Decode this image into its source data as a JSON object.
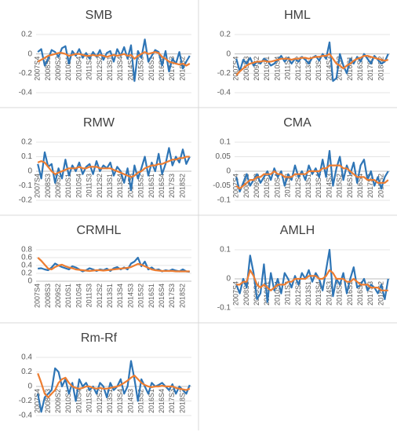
{
  "chart_data": [
    {
      "type": "line",
      "title": "SMB",
      "ylim": [
        -0.4,
        0.2
      ],
      "yticks": [
        -0.4,
        -0.2,
        0,
        0.2
      ],
      "categories": [
        "2007S4",
        null,
        null,
        "2008S3",
        null,
        null,
        "2009S2",
        null,
        null,
        "2010S1",
        null,
        null,
        "2010S4",
        null,
        null,
        "2011S3",
        null,
        null,
        "2012S2",
        null,
        null,
        "2013S1",
        null,
        null,
        "2013S4",
        null,
        null,
        "2014S3",
        null,
        null,
        "2015S2",
        null,
        null,
        "2016S1",
        null,
        null,
        "2016S4",
        null,
        null,
        "2017S3",
        null,
        null,
        "2018S2",
        null,
        null
      ],
      "series": [
        {
          "color": "#2e75b6",
          "values": [
            0.02,
            0.05,
            -0.12,
            -0.05,
            0.04,
            0.02,
            -0.03,
            0.06,
            0.08,
            -0.1,
            0.03,
            -0.02,
            0.05,
            -0.04,
            0.01,
            -0.05,
            0.02,
            -0.03,
            0.04,
            -0.06,
            0.01,
            0.03,
            -0.08,
            0.05,
            -0.02,
            0.07,
            -0.05,
            0.09,
            -0.28,
            0.03,
            -0.04,
            0.15,
            -0.08,
            -0.02,
            0.04,
            0.02,
            -0.12,
            0.03,
            -0.18,
            -0.05,
            -0.1,
            0.02,
            -0.15,
            -0.08,
            -0.02
          ]
        },
        {
          "color": "#ed7d31",
          "values": [
            -0.08,
            -0.06,
            -0.04,
            -0.02,
            -0.01,
            0,
            0.01,
            0.01,
            0,
            -0.02,
            -0.01,
            0,
            0,
            -0.01,
            -0.02,
            -0.02,
            -0.01,
            -0.02,
            -0.01,
            -0.02,
            -0.03,
            -0.02,
            -0.01,
            -0.02,
            -0.01,
            0,
            -0.02,
            -0.01,
            -0.05,
            -0.02,
            0,
            0.02,
            0,
            0.01,
            0.02,
            0.01,
            -0.03,
            -0.05,
            -0.08,
            -0.09,
            -0.1,
            -0.11,
            -0.1,
            -0.12,
            -0.1
          ]
        }
      ]
    },
    {
      "type": "line",
      "title": "HML",
      "ylim": [
        -0.4,
        0.2
      ],
      "yticks": [
        -0.4,
        -0.2,
        0,
        0.2
      ],
      "categories": [
        "2007S4",
        null,
        null,
        "2008S3",
        null,
        null,
        "2009S2",
        null,
        null,
        "2010S1",
        null,
        null,
        "2010S4",
        null,
        null,
        "2011S3",
        null,
        null,
        "2012S2",
        null,
        null,
        "2013S1",
        null,
        null,
        "2013S4",
        null,
        null,
        "2014S3",
        null,
        null,
        "2015S2",
        null,
        null,
        "2016S1",
        null,
        null,
        "2016S4",
        null,
        null,
        "2017S3",
        null,
        null,
        "2018S2",
        null,
        null
      ],
      "series": [
        {
          "color": "#2e75b6",
          "values": [
            -0.05,
            -0.18,
            -0.06,
            -0.1,
            -0.04,
            -0.12,
            -0.08,
            -0.1,
            -0.05,
            -0.07,
            -0.12,
            -0.1,
            -0.06,
            -0.02,
            -0.08,
            -0.04,
            -0.1,
            -0.05,
            -0.08,
            -0.03,
            -0.06,
            -0.1,
            -0.04,
            -0.02,
            -0.07,
            0,
            -0.05,
            0.12,
            -0.28,
            -0.25,
            0,
            -0.12,
            -0.2,
            -0.05,
            -0.1,
            -0.03,
            -0.08,
            0,
            -0.05,
            -0.1,
            -0.02,
            -0.06,
            -0.1,
            -0.08,
            0
          ]
        },
        {
          "color": "#ed7d31",
          "values": [
            -0.22,
            -0.18,
            -0.15,
            -0.12,
            -0.1,
            -0.09,
            -0.08,
            -0.08,
            -0.07,
            -0.08,
            -0.08,
            -0.07,
            -0.06,
            -0.05,
            -0.05,
            -0.05,
            -0.06,
            -0.05,
            -0.05,
            -0.04,
            -0.04,
            -0.05,
            -0.04,
            -0.03,
            -0.03,
            -0.02,
            -0.02,
            0,
            -0.05,
            -0.1,
            -0.12,
            -0.15,
            -0.12,
            -0.1,
            -0.07,
            -0.05,
            -0.04,
            -0.02,
            -0.02,
            -0.03,
            -0.04,
            -0.05,
            -0.06,
            -0.07,
            -0.06
          ]
        }
      ]
    },
    {
      "type": "line",
      "title": "RMW",
      "ylim": [
        -0.2,
        0.2
      ],
      "yticks": [
        -0.2,
        -0.1,
        0,
        0.1,
        0.2
      ],
      "categories": [
        "2007S4",
        null,
        null,
        "2008S3",
        null,
        null,
        "2009S2",
        null,
        null,
        "2010S1",
        null,
        null,
        "2010S4",
        null,
        null,
        "2011S3",
        null,
        null,
        "2012S2",
        null,
        null,
        "2013S1",
        null,
        null,
        "2013S4",
        null,
        null,
        "2014S3",
        null,
        null,
        "2015S2",
        null,
        null,
        "2016S1",
        null,
        null,
        "2016S4",
        null,
        null,
        "2017S3",
        null,
        null,
        "2018S2",
        null,
        null
      ],
      "series": [
        {
          "color": "#2e75b6",
          "values": [
            0.05,
            -0.05,
            0.13,
            0.03,
            0.05,
            -0.08,
            0.02,
            -0.05,
            0.08,
            -0.03,
            0.04,
            0,
            0.06,
            -0.02,
            0.03,
            0.05,
            -0.02,
            0.07,
            0,
            0.04,
            0.02,
            0.06,
            -0.03,
            0.03,
            0,
            -0.08,
            0.02,
            -0.13,
            0.04,
            -0.05,
            0.02,
            0.1,
            -0.03,
            0.06,
            0,
            0.12,
            -0.02,
            0.05,
            0.16,
            0.04,
            0.1,
            0.06,
            0.15,
            0.05,
            0.1
          ]
        },
        {
          "color": "#ed7d31",
          "values": [
            0.06,
            0.07,
            0.06,
            0.03,
            0,
            -0.02,
            -0.01,
            0,
            0.01,
            0.02,
            0.02,
            0.02,
            0.03,
            0.02,
            0.02,
            0.03,
            0.03,
            0.03,
            0.02,
            0.02,
            0.02,
            0.02,
            0.01,
            0,
            -0.01,
            -0.02,
            -0.03,
            -0.04,
            -0.03,
            -0.01,
            0,
            0.02,
            0.03,
            0.04,
            0.04,
            0.05,
            0.05,
            0.06,
            0.07,
            0.08,
            0.08,
            0.09,
            0.09,
            0.1,
            0.1
          ]
        }
      ]
    },
    {
      "type": "line",
      "title": "CMA",
      "ylim": [
        -0.1,
        0.1
      ],
      "yticks": [
        -0.1,
        -0.05,
        0,
        0.05,
        0.1
      ],
      "categories": [
        "2007S4",
        null,
        null,
        "2008S3",
        null,
        null,
        "2009S2",
        null,
        null,
        "2010S1",
        null,
        null,
        "2010S4",
        null,
        null,
        "2011S3",
        null,
        null,
        "2012S2",
        null,
        null,
        "2013S1",
        null,
        null,
        "2013S4",
        null,
        null,
        "2014S3",
        null,
        null,
        "2015S2",
        null,
        null,
        "2016S1",
        null,
        null,
        "2016S4",
        null,
        null,
        "2017S3",
        null,
        null,
        "2018S2",
        null,
        null
      ],
      "series": [
        {
          "color": "#2e75b6",
          "values": [
            -0.02,
            -0.07,
            -0.04,
            -0.01,
            -0.05,
            -0.03,
            -0.01,
            -0.04,
            -0.02,
            0,
            -0.03,
            0.01,
            -0.02,
            0,
            -0.05,
            -0.01,
            -0.03,
            0.02,
            -0.02,
            0,
            -0.03,
            0.02,
            -0.01,
            0.01,
            -0.02,
            0.04,
            -0.02,
            0.07,
            -0.05,
            0.01,
            0.05,
            -0.03,
            0.02,
            -0.01,
            0.03,
            -0.04,
            0.02,
            0.04,
            -0.03,
            0,
            -0.05,
            -0.02,
            -0.06,
            -0.02,
            0
          ]
        },
        {
          "color": "#ed7d31",
          "values": [
            -0.05,
            -0.06,
            -0.05,
            -0.04,
            -0.03,
            -0.03,
            -0.02,
            -0.02,
            -0.01,
            -0.01,
            -0.01,
            0,
            -0.01,
            -0.01,
            -0.02,
            -0.02,
            -0.02,
            -0.01,
            -0.01,
            -0.01,
            -0.01,
            0,
            0,
            0,
            0,
            0.01,
            0.01,
            0.02,
            0.02,
            0.02,
            0.02,
            0.01,
            0.01,
            0,
            -0.01,
            -0.02,
            -0.02,
            -0.02,
            -0.03,
            -0.03,
            -0.03,
            -0.04,
            -0.04,
            -0.04,
            -0.03
          ]
        }
      ]
    },
    {
      "type": "line",
      "title": "CRMHL",
      "ylim": [
        0,
        0.8
      ],
      "yticks": [
        0,
        0.2,
        0.4,
        0.6,
        0.8
      ],
      "categories": [
        "2007S4",
        null,
        null,
        "2008S3",
        null,
        null,
        "2009S2",
        null,
        null,
        "2010S1",
        null,
        null,
        "2010S4",
        null,
        null,
        "2011S3",
        null,
        null,
        "2012S2",
        null,
        null,
        "2013S1",
        null,
        null,
        "2013S4",
        null,
        null,
        "2014S3",
        null,
        null,
        "2015S2",
        null,
        null,
        "2016S1",
        null,
        null,
        "2016S4",
        null,
        null,
        "2017S3",
        null,
        null,
        "2018S2",
        null,
        null
      ],
      "series": [
        {
          "color": "#2e75b6",
          "values": [
            0.32,
            0.33,
            0.3,
            0.28,
            0.35,
            0.45,
            0.4,
            0.36,
            0.33,
            0.3,
            0.38,
            0.35,
            0.3,
            0.25,
            0.28,
            0.33,
            0.3,
            0.26,
            0.3,
            0.28,
            0.32,
            0.26,
            0.33,
            0.36,
            0.3,
            0.35,
            0.3,
            0.45,
            0.5,
            0.6,
            0.38,
            0.5,
            0.3,
            0.35,
            0.28,
            0.3,
            0.25,
            0.28,
            0.26,
            0.3,
            0.27,
            0.25,
            0.3,
            0.25,
            0.24
          ]
        },
        {
          "color": "#ed7d31",
          "values": [
            0.6,
            0.52,
            0.42,
            0.32,
            0.3,
            0.36,
            0.4,
            0.42,
            0.38,
            0.35,
            0.33,
            0.3,
            0.29,
            0.28,
            0.27,
            0.26,
            0.27,
            0.28,
            0.28,
            0.27,
            0.28,
            0.29,
            0.3,
            0.31,
            0.32,
            0.33,
            0.34,
            0.36,
            0.4,
            0.44,
            0.42,
            0.38,
            0.34,
            0.3,
            0.28,
            0.27,
            0.26,
            0.26,
            0.26,
            0.26,
            0.25,
            0.25,
            0.25,
            0.25,
            0.25
          ]
        }
      ]
    },
    {
      "type": "line",
      "title": "AMLH",
      "ylim": [
        -0.1,
        0.1
      ],
      "yticks": [
        -0.1,
        0,
        0.1
      ],
      "categories": [
        "2007S4",
        null,
        null,
        "2008S3",
        null,
        null,
        "2009S2",
        null,
        null,
        "2010S1",
        null,
        null,
        "2010S4",
        null,
        null,
        "2011S3",
        null,
        null,
        "2012S2",
        null,
        null,
        "2013S1",
        null,
        null,
        "2013S4",
        null,
        null,
        "2014S3",
        null,
        null,
        "2015S2",
        null,
        null,
        "2016S1",
        null,
        null,
        "2016S4",
        null,
        null,
        "2017S3",
        null,
        null,
        "2018S2",
        null,
        null
      ],
      "series": [
        {
          "color": "#2e75b6",
          "values": [
            -0.02,
            -0.05,
            0,
            -0.03,
            0.08,
            0.02,
            -0.07,
            -0.05,
            0.05,
            -0.08,
            0.02,
            -0.04,
            0,
            -0.05,
            0.02,
            0,
            -0.03,
            0.01,
            -0.02,
            0.02,
            0,
            0.03,
            -0.01,
            0.02,
            0,
            -0.04,
            0.03,
            0.1,
            -0.06,
            0,
            -0.02,
            0.02,
            -0.05,
            0,
            0.04,
            -0.03,
            -0.02,
            0,
            -0.04,
            -0.02,
            -0.03,
            -0.05,
            -0.02,
            -0.07,
            0
          ]
        },
        {
          "color": "#ed7d31",
          "values": [
            -0.02,
            -0.02,
            -0.01,
            -0.01,
            0.03,
            0.01,
            -0.02,
            -0.03,
            -0.02,
            -0.03,
            -0.04,
            -0.03,
            -0.02,
            -0.02,
            -0.02,
            -0.01,
            -0.01,
            0,
            0,
            0,
            0,
            0.01,
            0.01,
            0.01,
            0,
            0,
            0.01,
            0.03,
            0.02,
            0,
            0,
            0,
            -0.01,
            -0.01,
            0,
            -0.01,
            -0.02,
            -0.02,
            -0.02,
            -0.03,
            -0.03,
            -0.03,
            -0.04,
            -0.04,
            -0.04
          ]
        }
      ]
    },
    {
      "type": "line",
      "title": "Rm-Rf",
      "ylim": [
        -0.4,
        0.4
      ],
      "yticks": [
        -0.4,
        -0.2,
        0,
        0.2,
        0.4
      ],
      "categories": [
        "2007S4",
        null,
        null,
        "2008S3",
        null,
        null,
        "2009S2",
        null,
        null,
        "2010S1",
        null,
        null,
        "2010S4",
        null,
        null,
        "2011S3",
        null,
        null,
        "2012S2",
        null,
        null,
        "2013S1",
        null,
        null,
        "2013S4",
        null,
        null,
        "2014S3",
        null,
        null,
        "2015S2",
        null,
        null,
        "2016S1",
        null,
        null,
        "2016S4",
        null,
        null,
        "2017S3",
        null,
        null,
        "2018S2",
        null,
        null
      ],
      "series": [
        {
          "color": "#2e75b6",
          "values": [
            -0.1,
            -0.35,
            -0.15,
            -0.1,
            -0.05,
            0.25,
            0.2,
            0,
            0.1,
            -0.1,
            0.05,
            -0.2,
            0.1,
            0,
            0.05,
            -0.05,
            0,
            -0.1,
            0.05,
            0,
            -0.15,
            0.05,
            -0.05,
            0,
            0.1,
            -0.1,
            0,
            0.35,
            0.1,
            -0.2,
            0.1,
            0,
            -0.1,
            0.05,
            0,
            0.02,
            0.05,
            0,
            -0.05,
            0.03,
            -0.1,
            0,
            -0.05,
            -0.1,
            0.02
          ]
        },
        {
          "color": "#ed7d31",
          "values": [
            0.18,
            0.05,
            -0.1,
            -0.15,
            -0.1,
            -0.05,
            0.05,
            0.1,
            0.12,
            0.05,
            0,
            -0.02,
            -0.03,
            -0.02,
            0,
            0,
            -0.02,
            -0.03,
            -0.02,
            -0.03,
            -0.03,
            -0.02,
            -0.01,
            0,
            0.02,
            0.05,
            0.08,
            0.12,
            0.15,
            0.1,
            0.05,
            0.02,
            0,
            -0.01,
            0,
            0,
            0.01,
            0,
            0,
            0,
            -0.02,
            -0.03,
            -0.04,
            -0.05,
            -0.03
          ]
        }
      ]
    }
  ]
}
